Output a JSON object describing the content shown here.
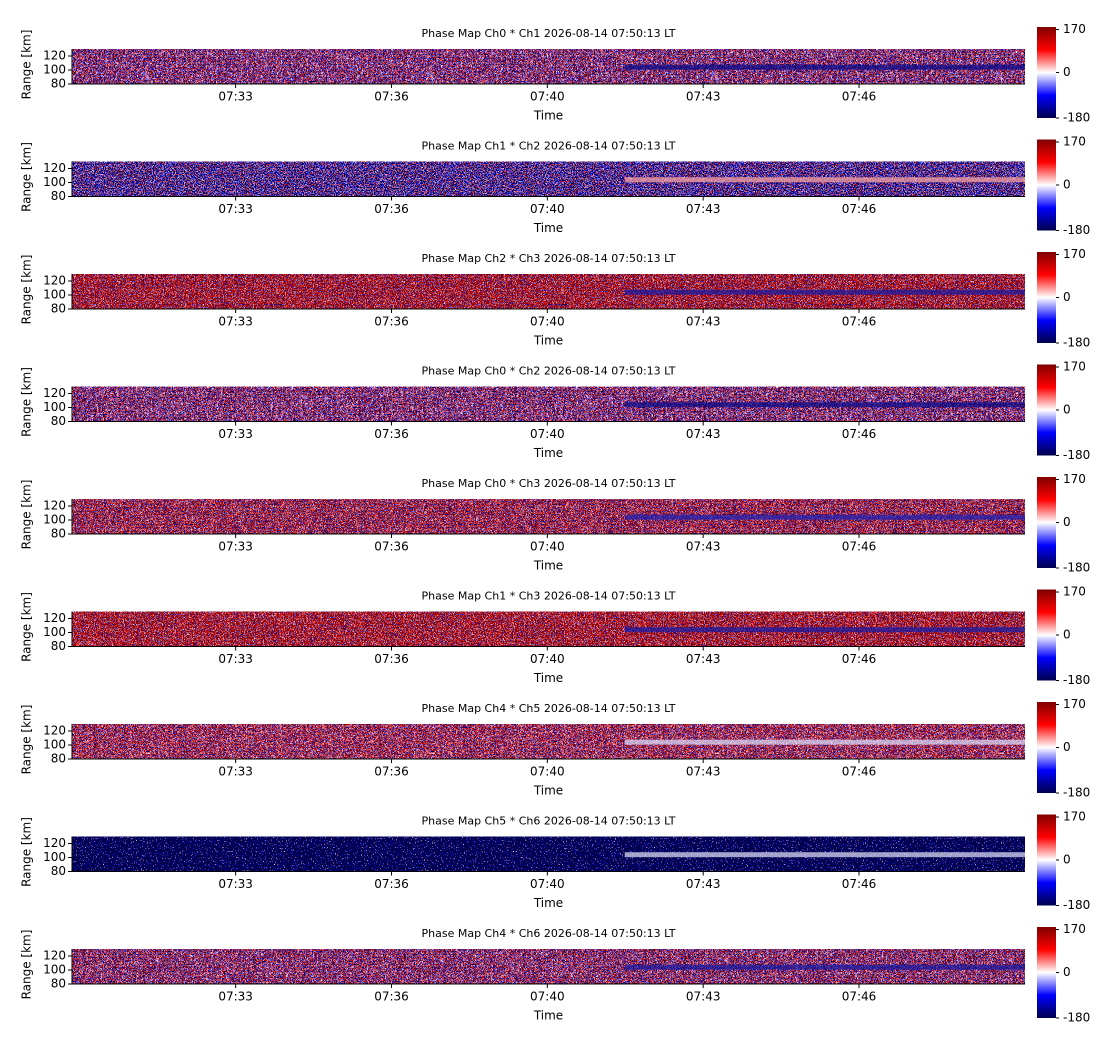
{
  "chart_data": [
    {
      "type": "heatmap",
      "title": "Phase Map Ch0 * Ch1 2026-08-14 07:50:13 LT",
      "xlabel": "Time",
      "ylabel": "Range [km]",
      "xlim": [
        "07:29:50",
        "07:50:13"
      ],
      "xticks": [
        {
          "value": "07:33:20",
          "label": "07:33"
        },
        {
          "value": "07:36:40",
          "label": "07:36"
        },
        {
          "value": "07:40:00",
          "label": "07:40"
        },
        {
          "value": "07:43:20",
          "label": "07:43"
        },
        {
          "value": "07:46:40",
          "label": "07:46"
        }
      ],
      "ylim": [
        80,
        130
      ],
      "yticks": [
        80,
        100,
        120
      ],
      "clim": [
        -180,
        180
      ],
      "cticks": [
        -180,
        0,
        170
      ],
      "colormap": [
        "#00004c",
        "#0000ff",
        "#ffffff",
        "#ff0000",
        "#7f0000"
      ]
    },
    {
      "type": "heatmap",
      "title": "Phase Map Ch1 * Ch2 2026-08-14 07:50:13 LT",
      "xlabel": "Time",
      "ylabel": "Range [km]",
      "xlim": [
        "07:29:50",
        "07:50:13"
      ],
      "xticks": [
        {
          "value": "07:33:20",
          "label": "07:33"
        },
        {
          "value": "07:36:40",
          "label": "07:36"
        },
        {
          "value": "07:40:00",
          "label": "07:40"
        },
        {
          "value": "07:43:20",
          "label": "07:43"
        },
        {
          "value": "07:46:40",
          "label": "07:46"
        }
      ],
      "ylim": [
        80,
        130
      ],
      "yticks": [
        80,
        100,
        120
      ],
      "clim": [
        -180,
        180
      ],
      "cticks": [
        -180,
        0,
        170
      ],
      "colormap": [
        "#00004c",
        "#0000ff",
        "#ffffff",
        "#ff0000",
        "#7f0000"
      ]
    },
    {
      "type": "heatmap",
      "title": "Phase Map Ch2 * Ch3 2026-08-14 07:50:13 LT",
      "xlabel": "Time",
      "ylabel": "Range [km]",
      "xlim": [
        "07:29:50",
        "07:50:13"
      ],
      "xticks": [
        {
          "value": "07:33:20",
          "label": "07:33"
        },
        {
          "value": "07:36:40",
          "label": "07:36"
        },
        {
          "value": "07:40:00",
          "label": "07:40"
        },
        {
          "value": "07:43:20",
          "label": "07:43"
        },
        {
          "value": "07:46:40",
          "label": "07:46"
        }
      ],
      "ylim": [
        80,
        130
      ],
      "yticks": [
        80,
        100,
        120
      ],
      "clim": [
        -180,
        180
      ],
      "cticks": [
        -180,
        0,
        170
      ],
      "colormap": [
        "#00004c",
        "#0000ff",
        "#ffffff",
        "#ff0000",
        "#7f0000"
      ]
    },
    {
      "type": "heatmap",
      "title": "Phase Map Ch0 * Ch2 2026-08-14 07:50:13 LT",
      "xlabel": "Time",
      "ylabel": "Range [km]",
      "xlim": [
        "07:29:50",
        "07:50:13"
      ],
      "xticks": [
        {
          "value": "07:33:20",
          "label": "07:33"
        },
        {
          "value": "07:36:40",
          "label": "07:36"
        },
        {
          "value": "07:40:00",
          "label": "07:40"
        },
        {
          "value": "07:43:20",
          "label": "07:43"
        },
        {
          "value": "07:46:40",
          "label": "07:46"
        }
      ],
      "ylim": [
        80,
        130
      ],
      "yticks": [
        80,
        100,
        120
      ],
      "clim": [
        -180,
        180
      ],
      "cticks": [
        -180,
        0,
        170
      ],
      "colormap": [
        "#00004c",
        "#0000ff",
        "#ffffff",
        "#ff0000",
        "#7f0000"
      ]
    },
    {
      "type": "heatmap",
      "title": "Phase Map Ch0 * Ch3 2026-08-14 07:50:13 LT",
      "xlabel": "Time",
      "ylabel": "Range [km]",
      "xlim": [
        "07:29:50",
        "07:50:13"
      ],
      "xticks": [
        {
          "value": "07:33:20",
          "label": "07:33"
        },
        {
          "value": "07:36:40",
          "label": "07:36"
        },
        {
          "value": "07:40:00",
          "label": "07:40"
        },
        {
          "value": "07:43:20",
          "label": "07:43"
        },
        {
          "value": "07:46:40",
          "label": "07:46"
        }
      ],
      "ylim": [
        80,
        130
      ],
      "yticks": [
        80,
        100,
        120
      ],
      "clim": [
        -180,
        180
      ],
      "cticks": [
        -180,
        0,
        170
      ],
      "colormap": [
        "#00004c",
        "#0000ff",
        "#ffffff",
        "#ff0000",
        "#7f0000"
      ]
    },
    {
      "type": "heatmap",
      "title": "Phase Map Ch1 * Ch3 2026-08-14 07:50:13 LT",
      "xlabel": "Time",
      "ylabel": "Range [km]",
      "xlim": [
        "07:29:50",
        "07:50:13"
      ],
      "xticks": [
        {
          "value": "07:33:20",
          "label": "07:33"
        },
        {
          "value": "07:36:40",
          "label": "07:36"
        },
        {
          "value": "07:40:00",
          "label": "07:40"
        },
        {
          "value": "07:43:20",
          "label": "07:43"
        },
        {
          "value": "07:46:40",
          "label": "07:46"
        }
      ],
      "ylim": [
        80,
        130
      ],
      "yticks": [
        80,
        100,
        120
      ],
      "clim": [
        -180,
        180
      ],
      "cticks": [
        -180,
        0,
        170
      ],
      "colormap": [
        "#00004c",
        "#0000ff",
        "#ffffff",
        "#ff0000",
        "#7f0000"
      ]
    },
    {
      "type": "heatmap",
      "title": "Phase Map Ch4 * Ch5 2026-08-14 07:50:13 LT",
      "xlabel": "Time",
      "ylabel": "Range [km]",
      "xlim": [
        "07:29:50",
        "07:50:13"
      ],
      "xticks": [
        {
          "value": "07:33:20",
          "label": "07:33"
        },
        {
          "value": "07:36:40",
          "label": "07:36"
        },
        {
          "value": "07:40:00",
          "label": "07:40"
        },
        {
          "value": "07:43:20",
          "label": "07:43"
        },
        {
          "value": "07:46:40",
          "label": "07:46"
        }
      ],
      "ylim": [
        80,
        130
      ],
      "yticks": [
        80,
        100,
        120
      ],
      "clim": [
        -180,
        180
      ],
      "cticks": [
        -180,
        0,
        170
      ],
      "colormap": [
        "#00004c",
        "#0000ff",
        "#ffffff",
        "#ff0000",
        "#7f0000"
      ]
    },
    {
      "type": "heatmap",
      "title": "Phase Map Ch5 * Ch6 2026-08-14 07:50:13 LT",
      "xlabel": "Time",
      "ylabel": "Range [km]",
      "xlim": [
        "07:29:50",
        "07:50:13"
      ],
      "xticks": [
        {
          "value": "07:33:20",
          "label": "07:33"
        },
        {
          "value": "07:36:40",
          "label": "07:36"
        },
        {
          "value": "07:40:00",
          "label": "07:40"
        },
        {
          "value": "07:43:20",
          "label": "07:43"
        },
        {
          "value": "07:46:40",
          "label": "07:46"
        }
      ],
      "ylim": [
        80,
        130
      ],
      "yticks": [
        80,
        100,
        120
      ],
      "clim": [
        -180,
        180
      ],
      "cticks": [
        -180,
        0,
        170
      ],
      "colormap": [
        "#00004c",
        "#0000ff",
        "#ffffff",
        "#ff0000",
        "#7f0000"
      ]
    },
    {
      "type": "heatmap",
      "title": "Phase Map Ch4 * Ch6 2026-08-14 07:50:13 LT",
      "xlabel": "Time",
      "ylabel": "Range [km]",
      "xlim": [
        "07:29:50",
        "07:50:13"
      ],
      "xticks": [
        {
          "value": "07:33:20",
          "label": "07:33"
        },
        {
          "value": "07:36:40",
          "label": "07:36"
        },
        {
          "value": "07:40:00",
          "label": "07:40"
        },
        {
          "value": "07:43:20",
          "label": "07:43"
        },
        {
          "value": "07:46:40",
          "label": "07:46"
        }
      ],
      "ylim": [
        80,
        130
      ],
      "yticks": [
        80,
        100,
        120
      ],
      "clim": [
        -180,
        180
      ],
      "cticks": [
        -180,
        0,
        170
      ],
      "colormap": [
        "#00004c",
        "#0000ff",
        "#ffffff",
        "#ff0000",
        "#7f0000"
      ]
    }
  ]
}
